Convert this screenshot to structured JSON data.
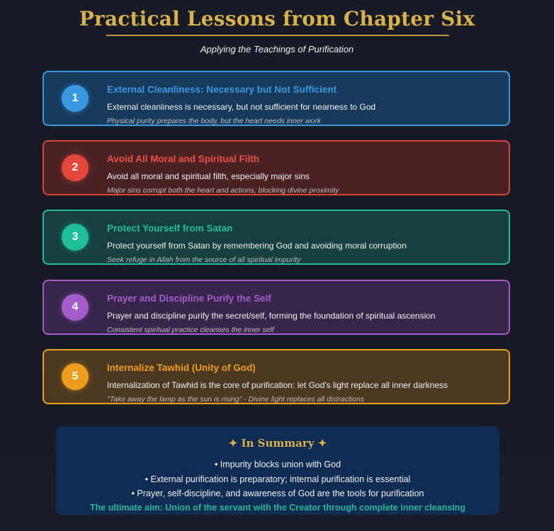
{
  "header": {
    "title": "Practical Lessons from Chapter Six",
    "subtitle": "Applying the Teachings of Purification"
  },
  "colors": {
    "accent_gold": "#d9b14c",
    "blue": "#3a98e0",
    "red": "#e5473b",
    "teal": "#1fbf9b",
    "purple": "#a55ccb",
    "orange": "#ef9d1e"
  },
  "lessons": [
    {
      "number": "1",
      "title": "External Cleanliness: Necessary but Not Sufficient",
      "text": "External cleanliness is necessary, but not sufficient for nearness to God",
      "note": "Physical purity prepares the body, but the heart needs inner work"
    },
    {
      "number": "2",
      "title": "Avoid All Moral and Spiritual Filth",
      "text": "Avoid all moral and spiritual filth, especially major sins",
      "note": "Major sins corrupt both the heart and actions, blocking divine proximity"
    },
    {
      "number": "3",
      "title": "Protect Yourself from Satan",
      "text": "Protect yourself from Satan by remembering God and avoiding moral corruption",
      "note": "Seek refuge in Allah from the source of all spiritual impurity"
    },
    {
      "number": "4",
      "title": "Prayer and Discipline Purify the Self",
      "text": "Prayer and discipline purify the secret/self, forming the foundation of spiritual ascension",
      "note": "Consistent spiritual practice cleanses the inner self"
    },
    {
      "number": "5",
      "title": "Internalize Tawhid (Unity of God)",
      "text": "Internalization of Tawhid is the core of purification: let God's light replace all inner darkness",
      "note": "\"Take away the lamp as the sun is rising\" - Divine light replaces all distractions"
    }
  ],
  "summary": {
    "title": "✦ In Summary ✦",
    "points": [
      "• Impurity blocks union with God",
      "• External purification is preparatory; internal purification is essential",
      "• Prayer, self-discipline, and awareness of God are the tools for purification"
    ],
    "aim": "The ultimate aim: Union of the servant with the Creator through complete inner cleansing"
  }
}
